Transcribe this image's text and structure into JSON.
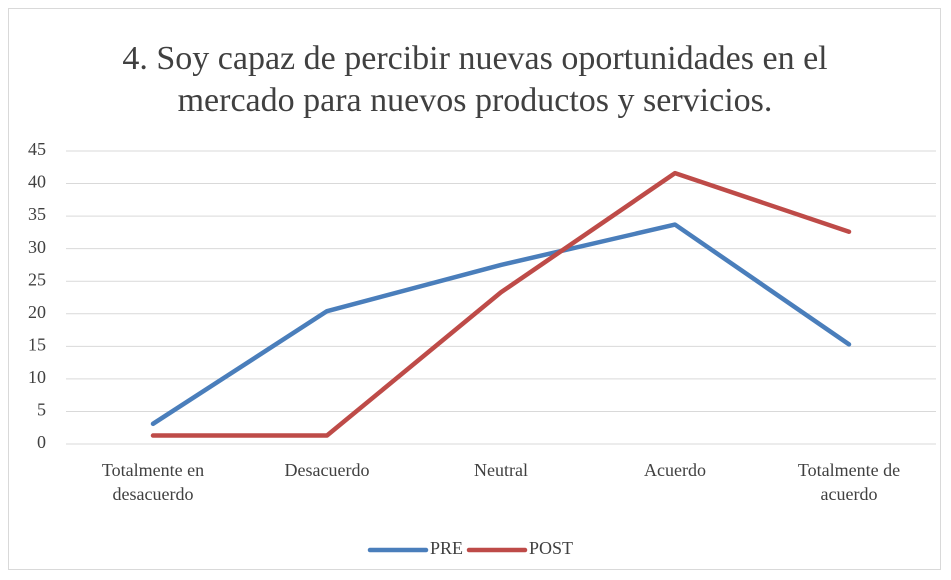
{
  "chart_data": {
    "type": "line",
    "title": "4. Soy capaz de percibir nuevas oportunidades en el mercado para nuevos productos y servicios.",
    "categories": [
      "Totalmente en desacuerdo",
      "Desacuerdo",
      "Neutral",
      "Acuerdo",
      "Totalmente de acuerdo"
    ],
    "series": [
      {
        "name": "PRE",
        "color": "#4a7ebb",
        "values": [
          3.1,
          20.4,
          27.5,
          33.7,
          15.3
        ]
      },
      {
        "name": "POST",
        "color": "#be4b48",
        "values": [
          1.3,
          1.3,
          23.3,
          41.6,
          32.6
        ]
      }
    ],
    "ylim": [
      0,
      45
    ],
    "yticks": [
      0,
      5,
      10,
      15,
      20,
      25,
      30,
      35,
      40,
      45
    ],
    "grid": true,
    "legend": "bottom"
  }
}
